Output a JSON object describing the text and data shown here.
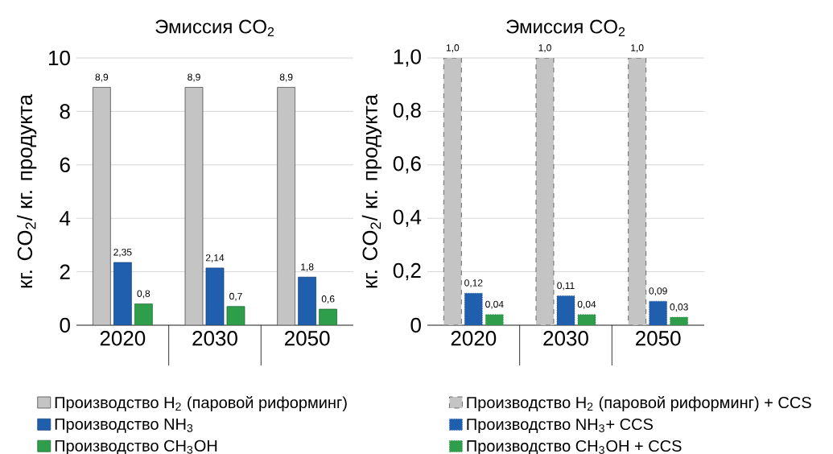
{
  "chart_data": [
    {
      "type": "bar",
      "title": "Эмиссия CO$_{2}$",
      "ylabel": "кг. CO$_{2}$/ кг. продукта",
      "categories": [
        "2020",
        "2030",
        "2050"
      ],
      "ylim": [
        0,
        10
      ],
      "yticks": [
        0,
        2,
        4,
        6,
        8,
        10
      ],
      "grid": "y",
      "legend": "bottom",
      "series": [
        {
          "name": "Производство H$_{2}$ (паровой риформинг)",
          "color": "#c4c4c4",
          "values": [
            8.9,
            8.9,
            8.9
          ],
          "value_labels": [
            "8,9",
            "8,9",
            "8,9"
          ]
        },
        {
          "name": "Производство NH$_{3}$",
          "color": "#1f5fae",
          "values": [
            2.35,
            2.14,
            1.8
          ],
          "value_labels": [
            "2,35",
            "2,14",
            "1,8"
          ]
        },
        {
          "name": "Производство CH$_{3}$OH",
          "color": "#2e9e4a",
          "values": [
            0.8,
            0.7,
            0.6
          ],
          "value_labels": [
            "0,8",
            "0,7",
            "0,6"
          ]
        }
      ]
    },
    {
      "type": "bar",
      "title": "Эмиссия CO$_{2}$",
      "ylabel": "кг. CO$_{2}$/ кг. продукта",
      "categories": [
        "2020",
        "2030",
        "2050"
      ],
      "ylim": [
        0,
        1.0
      ],
      "yticks": [
        0,
        {
          "value": 0.2,
          "label": "0,2"
        },
        {
          "value": 0.4,
          "label": "0,4"
        },
        {
          "value": 0.6,
          "label": "0,6"
        },
        {
          "value": 0.8,
          "label": "0,8"
        },
        {
          "value": 1.0,
          "label": "1,0"
        }
      ],
      "grid": "y",
      "legend": "bottom",
      "series": [
        {
          "name": "Производство H$_{2}$ (паровой риформинг) + CCS",
          "color": "#c4c4c4",
          "line_style": "dashed",
          "values": [
            1.0,
            1.0,
            1.0
          ],
          "value_labels": [
            "1,0",
            "1,0",
            "1,0"
          ]
        },
        {
          "name": "Производство NH$_{3}$+ CCS",
          "color": "#1f5fae",
          "line_style": "dotted",
          "values": [
            0.12,
            0.11,
            0.09
          ],
          "value_labels": [
            "0,12",
            "0,11",
            "0,09"
          ]
        },
        {
          "name": "Производство CH$_{3}$OH + CCS",
          "color": "#2e9e4a",
          "line_style": "dotted",
          "values": [
            0.04,
            0.04,
            0.03
          ],
          "value_labels": [
            "0,04",
            "0,04",
            "0,03"
          ]
        }
      ]
    }
  ]
}
